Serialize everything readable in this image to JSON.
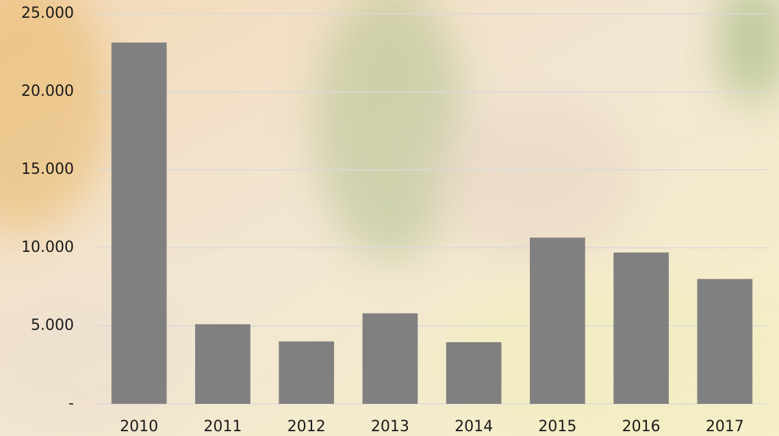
{
  "chart_data": {
    "type": "bar",
    "categories": [
      "2010",
      "2011",
      "2012",
      "2013",
      "2014",
      "2015",
      "2016",
      "2017"
    ],
    "values": [
      23150,
      5100,
      4000,
      5800,
      3950,
      10650,
      9700,
      8000
    ],
    "color": "#808080",
    "ylim": [
      0,
      25000
    ],
    "yticks": [
      {
        "value": 0,
        "label": "-"
      },
      {
        "value": 5000,
        "label": "5.000"
      },
      {
        "value": 10000,
        "label": "10.000"
      },
      {
        "value": 15000,
        "label": "15.000"
      },
      {
        "value": 20000,
        "label": "20.000"
      },
      {
        "value": 25000,
        "label": "25.000"
      }
    ],
    "grid": true
  }
}
